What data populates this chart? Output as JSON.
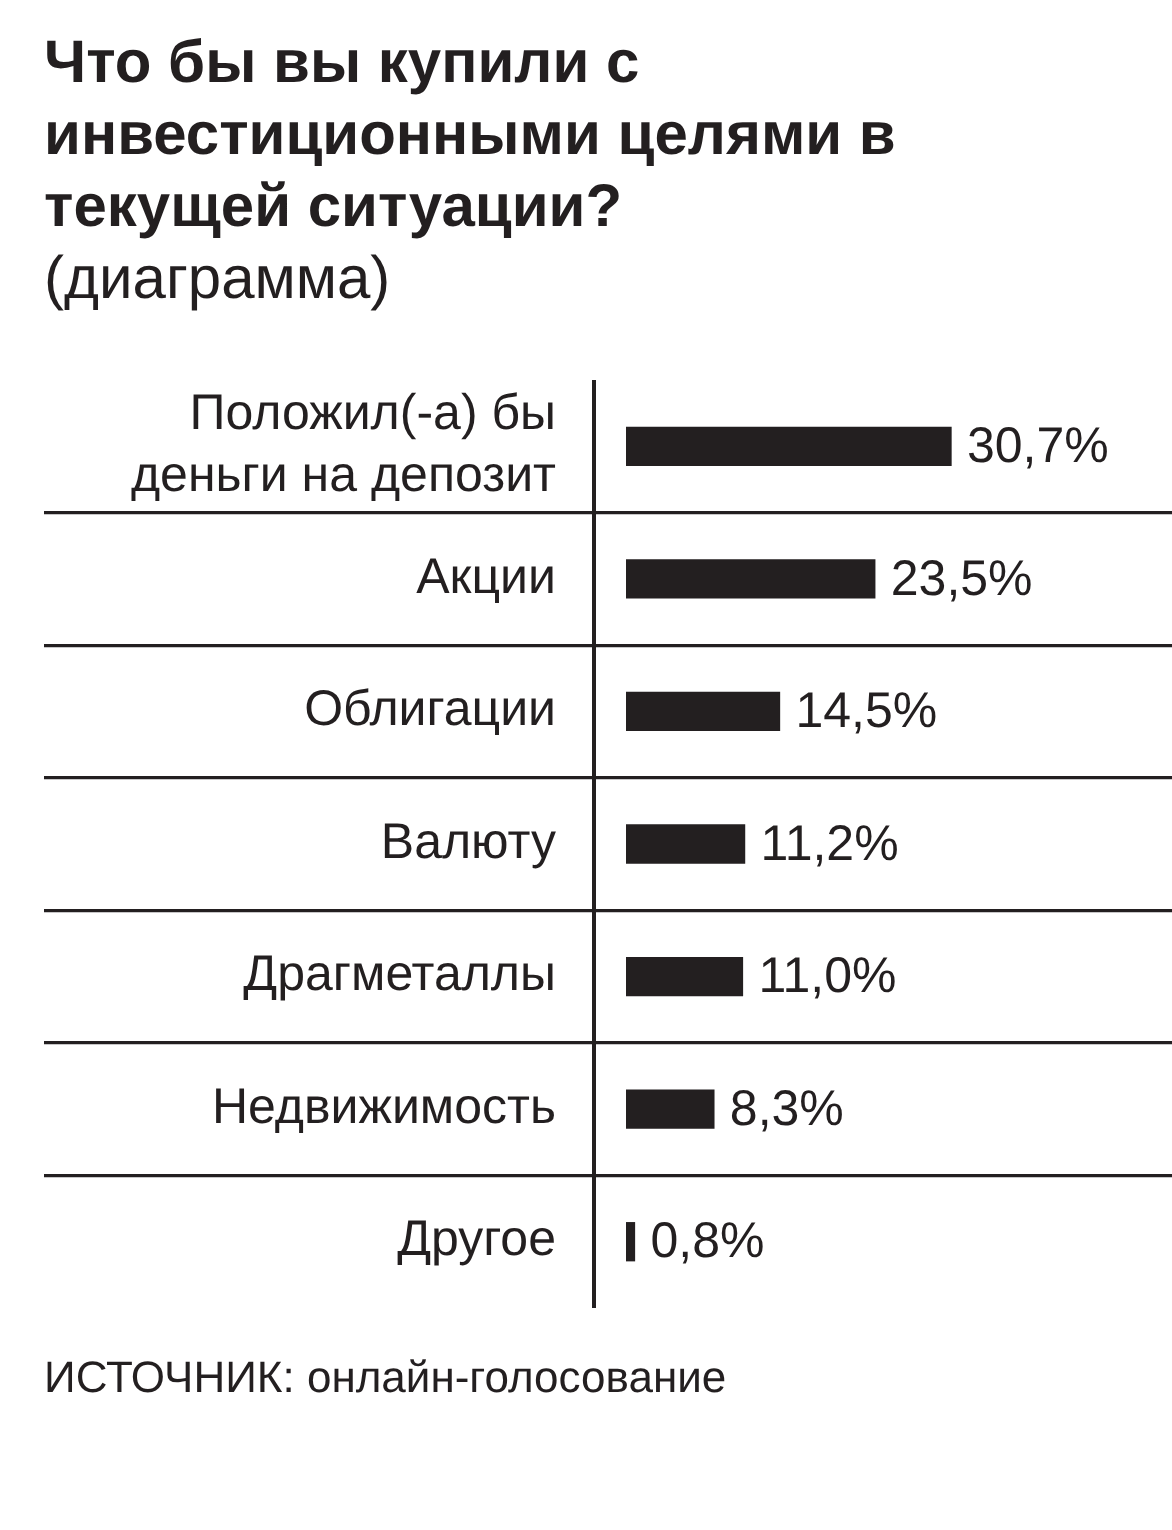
{
  "chart_data": {
    "type": "bar",
    "orientation": "horizontal",
    "title": "Что бы вы купили с инвестиционными целями в текущей ситуации?",
    "subtitle": "(диаграмма)",
    "categories": [
      "Положил(-а) бы деньги на депозит",
      "Акции",
      "Облигации",
      "Валюту",
      "Драгметаллы",
      "Недвижимость",
      "Другое"
    ],
    "values": [
      30.7,
      23.5,
      14.5,
      11.2,
      11.0,
      8.3,
      0.8
    ],
    "value_labels": [
      "30,7%",
      "23,5%",
      "14,5%",
      "11,2%",
      "11,0%",
      "8,3%",
      "0,8%"
    ],
    "color": "#231f20",
    "grid": "y",
    "tick_labels": "y",
    "annotations": [
      "ИСТОЧНИК: онлайн-голосование"
    ]
  }
}
